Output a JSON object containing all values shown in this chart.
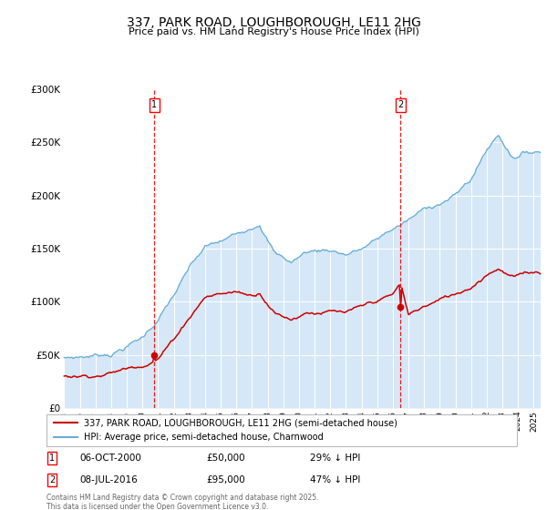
{
  "title_line1": "337, PARK ROAD, LOUGHBOROUGH, LE11 2HG",
  "title_line2": "Price paid vs. HM Land Registry's House Price Index (HPI)",
  "legend_line1": "337, PARK ROAD, LOUGHBOROUGH, LE11 2HG (semi-detached house)",
  "legend_line2": "HPI: Average price, semi-detached house, Charnwood",
  "footnote": "Contains HM Land Registry data © Crown copyright and database right 2025.\nThis data is licensed under the Open Government Licence v3.0.",
  "marker1_date": "06-OCT-2000",
  "marker1_price": 50000,
  "marker1_hpi_note": "29% ↓ HPI",
  "marker1_x": 2000.75,
  "marker2_date": "08-JUL-2016",
  "marker2_price": 95000,
  "marker2_hpi_note": "47% ↓ HPI",
  "marker2_x": 2016.5,
  "hpi_fill_color": "#d6e8f7",
  "hpi_line_color": "#6aaed6",
  "price_color": "#cc0000",
  "marker_color": "#cc0000",
  "bg_color": "#ffffff",
  "ylim": [
    0,
    300000
  ],
  "xlim_start": 1994.92,
  "xlim_end": 2025.5
}
